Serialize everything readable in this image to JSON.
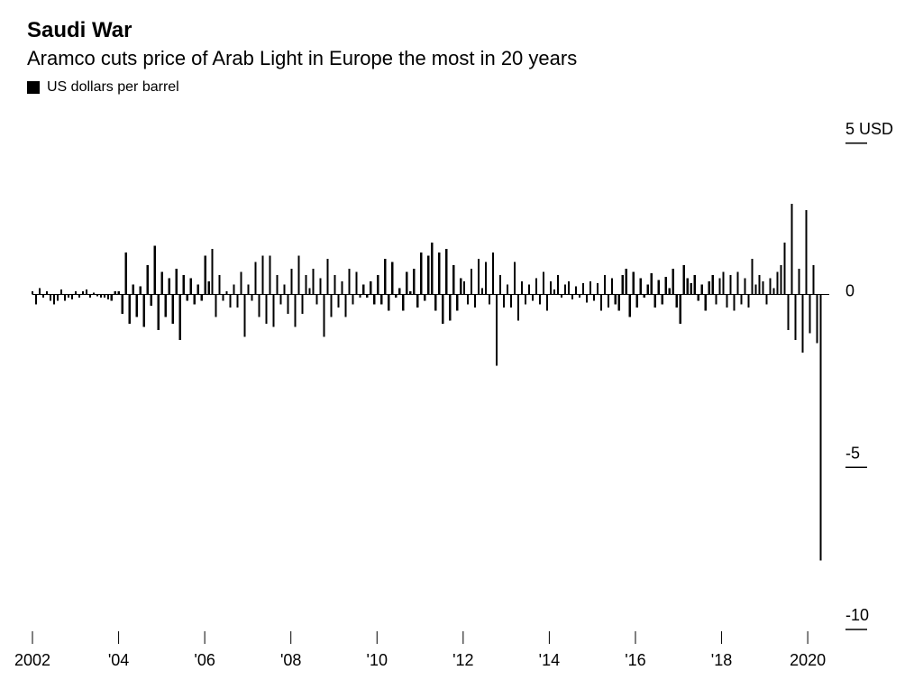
{
  "header": {
    "title": "Saudi War",
    "subtitle": "Aramco cuts price of Arab Light in Europe the most in 20 years",
    "legend_label": "US dollars per barrel"
  },
  "chart": {
    "type": "bar",
    "bar_color": "#000000",
    "background_color": "#ffffff",
    "axis_color": "#000000",
    "text_color": "#000000",
    "axis_fontsize": 18,
    "title_fontsize": 24,
    "subtitle_fontsize": 22,
    "legend_fontsize": 16,
    "bar_width": 2.2,
    "y": {
      "min": -10,
      "max": 5.3,
      "ticks": [
        {
          "value": 5,
          "label": "5 USD"
        },
        {
          "value": 0,
          "label": "0"
        },
        {
          "value": -5,
          "label": "-5"
        },
        {
          "value": -10,
          "label": "-10"
        }
      ],
      "unit": "USD"
    },
    "x": {
      "start_year": 2002,
      "end_year": 2020.5,
      "ticks": [
        {
          "year": 2002,
          "label": "2002"
        },
        {
          "year": 2004,
          "label": "'04"
        },
        {
          "year": 2006,
          "label": "'06"
        },
        {
          "year": 2008,
          "label": "'08"
        },
        {
          "year": 2010,
          "label": "'10"
        },
        {
          "year": 2012,
          "label": "'12"
        },
        {
          "year": 2014,
          "label": "'14"
        },
        {
          "year": 2016,
          "label": "'16"
        },
        {
          "year": 2018,
          "label": "'18"
        },
        {
          "year": 2020,
          "label": "2020"
        }
      ]
    },
    "values": [
      0.1,
      -0.3,
      0.2,
      -0.1,
      0.1,
      -0.2,
      -0.3,
      -0.2,
      0.15,
      -0.2,
      -0.1,
      -0.15,
      0.1,
      -0.1,
      0.1,
      0.15,
      -0.1,
      0.05,
      -0.05,
      -0.1,
      -0.1,
      -0.15,
      -0.2,
      0.1,
      0.1,
      -0.6,
      1.3,
      -0.9,
      0.3,
      -0.7,
      0.25,
      -1.0,
      0.9,
      -0.35,
      1.5,
      -1.1,
      0.7,
      -0.7,
      0.5,
      -0.9,
      0.8,
      -1.4,
      0.6,
      -0.2,
      0.5,
      -0.3,
      0.3,
      -0.2,
      1.2,
      0.4,
      1.4,
      -0.7,
      0.6,
      -0.2,
      0.1,
      -0.4,
      0.3,
      -0.4,
      0.7,
      -1.3,
      0.3,
      -0.2,
      1.0,
      -0.7,
      1.2,
      -0.9,
      1.2,
      -1.0,
      0.6,
      -0.3,
      0.3,
      -0.6,
      0.8,
      -1.0,
      1.2,
      -0.6,
      0.6,
      0.2,
      0.8,
      -0.3,
      0.5,
      -1.3,
      1.1,
      -0.7,
      0.6,
      -0.4,
      0.4,
      -0.7,
      0.8,
      -0.3,
      0.7,
      -0.1,
      0.3,
      -0.1,
      0.4,
      -0.3,
      0.6,
      -0.3,
      1.1,
      -0.5,
      1.0,
      -0.1,
      0.2,
      -0.5,
      0.7,
      0.1,
      0.8,
      -0.4,
      1.3,
      -0.2,
      1.2,
      1.6,
      -0.5,
      1.3,
      -0.9,
      1.4,
      -0.8,
      0.9,
      -0.5,
      0.5,
      0.4,
      -0.3,
      0.8,
      -0.4,
      1.1,
      0.2,
      1.0,
      -0.3,
      1.3,
      -2.2,
      0.6,
      -0.4,
      0.3,
      -0.4,
      1.0,
      -0.8,
      0.4,
      -0.3,
      0.3,
      -0.2,
      0.5,
      -0.3,
      0.7,
      -0.5,
      0.4,
      0.15,
      0.6,
      -0.1,
      0.3,
      0.4,
      -0.15,
      0.25,
      -0.1,
      0.35,
      -0.25,
      0.4,
      -0.2,
      0.35,
      -0.5,
      0.6,
      -0.4,
      0.5,
      -0.3,
      -0.5,
      0.6,
      0.8,
      -0.7,
      0.7,
      -0.4,
      0.5,
      -0.1,
      0.3,
      0.65,
      -0.4,
      0.45,
      -0.3,
      0.55,
      0.2,
      0.8,
      -0.4,
      -0.9,
      0.9,
      0.5,
      0.35,
      0.6,
      -0.2,
      0.3,
      -0.5,
      0.4,
      0.6,
      -0.3,
      0.5,
      0.7,
      -0.4,
      0.6,
      -0.5,
      0.7,
      -0.3,
      0.5,
      -0.4,
      1.1,
      0.3,
      0.6,
      0.4,
      -0.3,
      0.5,
      0.2,
      0.7,
      0.9,
      1.6,
      -1.1,
      2.8,
      -1.4,
      0.8,
      -1.8,
      2.6,
      -1.2,
      0.9,
      -1.5,
      -8.2
    ]
  }
}
